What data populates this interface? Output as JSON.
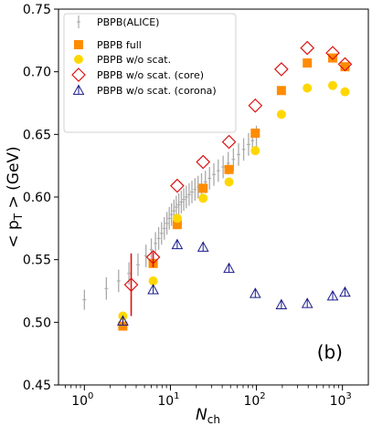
{
  "chart_data": {
    "type": "scatter",
    "xscale": "log",
    "xlim": [
      0.5,
      2000
    ],
    "ylim": [
      0.45,
      0.75
    ],
    "x_ticks": [
      {
        "value": 1,
        "base": "10",
        "exp": "0"
      },
      {
        "value": 10,
        "base": "10",
        "exp": "1"
      },
      {
        "value": 100,
        "base": "10",
        "exp": "2"
      },
      {
        "value": 1000,
        "base": "10",
        "exp": "3"
      }
    ],
    "y_ticks": [
      "0.45",
      "0.50",
      "0.55",
      "0.60",
      "0.65",
      "0.70",
      "0.75"
    ],
    "xlabel": {
      "main": "N",
      "sub": "ch"
    },
    "ylabel": {
      "pre": "< p",
      "sub": "T",
      "post": " > (GeV)"
    },
    "panel_label": "(b)",
    "grid": false,
    "legend_position": "top-left",
    "series": [
      {
        "name": "PBPB(ALICE)",
        "marker": "errorbar",
        "color": "#a9a9a9",
        "points": [
          {
            "x": 1.0,
            "y": 0.518,
            "err": 0.008
          },
          {
            "x": 1.8,
            "y": 0.527,
            "err": 0.009
          },
          {
            "x": 2.5,
            "y": 0.533,
            "err": 0.009
          },
          {
            "x": 3.3,
            "y": 0.539,
            "err": 0.009
          },
          {
            "x": 4.2,
            "y": 0.546,
            "err": 0.009
          },
          {
            "x": 5.2,
            "y": 0.553,
            "err": 0.009
          },
          {
            "x": 6.0,
            "y": 0.558,
            "err": 0.009
          },
          {
            "x": 6.7,
            "y": 0.563,
            "err": 0.009
          },
          {
            "x": 7.3,
            "y": 0.567,
            "err": 0.009
          },
          {
            "x": 7.9,
            "y": 0.571,
            "err": 0.009
          },
          {
            "x": 8.5,
            "y": 0.575,
            "err": 0.009
          },
          {
            "x": 9.1,
            "y": 0.579,
            "err": 0.009
          },
          {
            "x": 9.7,
            "y": 0.583,
            "err": 0.009
          },
          {
            "x": 10.3,
            "y": 0.586,
            "err": 0.009
          },
          {
            "x": 11.0,
            "y": 0.589,
            "err": 0.009
          },
          {
            "x": 11.7,
            "y": 0.592,
            "err": 0.009
          },
          {
            "x": 12.5,
            "y": 0.594,
            "err": 0.009
          },
          {
            "x": 13.4,
            "y": 0.596,
            "err": 0.009
          },
          {
            "x": 14.3,
            "y": 0.598,
            "err": 0.009
          },
          {
            "x": 15.3,
            "y": 0.6,
            "err": 0.009
          },
          {
            "x": 16.5,
            "y": 0.602,
            "err": 0.009
          },
          {
            "x": 17.8,
            "y": 0.604,
            "err": 0.009
          },
          {
            "x": 19.3,
            "y": 0.606,
            "err": 0.009
          },
          {
            "x": 21.0,
            "y": 0.608,
            "err": 0.009
          },
          {
            "x": 23.0,
            "y": 0.61,
            "err": 0.009
          },
          {
            "x": 25.5,
            "y": 0.612,
            "err": 0.009
          },
          {
            "x": 28.5,
            "y": 0.615,
            "err": 0.009
          },
          {
            "x": 32.0,
            "y": 0.618,
            "err": 0.009
          },
          {
            "x": 36.0,
            "y": 0.621,
            "err": 0.009
          },
          {
            "x": 41.0,
            "y": 0.624,
            "err": 0.009
          },
          {
            "x": 47.0,
            "y": 0.627,
            "err": 0.009
          },
          {
            "x": 54.0,
            "y": 0.63,
            "err": 0.009
          },
          {
            "x": 62.0,
            "y": 0.634,
            "err": 0.009
          },
          {
            "x": 71.0,
            "y": 0.638,
            "err": 0.009
          },
          {
            "x": 81.0,
            "y": 0.642,
            "err": 0.009
          },
          {
            "x": 90.0,
            "y": 0.645,
            "err": 0.009
          },
          {
            "x": 100.0,
            "y": 0.648,
            "err": 0.009
          }
        ]
      },
      {
        "name": "PBPB full",
        "marker": "square",
        "color": "#ff8c00",
        "points": [
          {
            "x": 2.8,
            "y": 0.497
          },
          {
            "x": 6.3,
            "y": 0.547
          },
          {
            "x": 12.0,
            "y": 0.578
          },
          {
            "x": 24.0,
            "y": 0.607
          },
          {
            "x": 48.0,
            "y": 0.622
          },
          {
            "x": 97.0,
            "y": 0.651
          },
          {
            "x": 195.0,
            "y": 0.685
          },
          {
            "x": 390.0,
            "y": 0.707
          },
          {
            "x": 770.0,
            "y": 0.711
          },
          {
            "x": 1070.0,
            "y": 0.704
          }
        ]
      },
      {
        "name": "PBPB w/o scat.",
        "marker": "circle",
        "color": "#ffd700",
        "points": [
          {
            "x": 2.8,
            "y": 0.505
          },
          {
            "x": 6.3,
            "y": 0.533
          },
          {
            "x": 12.0,
            "y": 0.583
          },
          {
            "x": 24.0,
            "y": 0.599
          },
          {
            "x": 48.0,
            "y": 0.612
          },
          {
            "x": 97.0,
            "y": 0.637
          },
          {
            "x": 195.0,
            "y": 0.666
          },
          {
            "x": 390.0,
            "y": 0.687
          },
          {
            "x": 770.0,
            "y": 0.689
          },
          {
            "x": 1070.0,
            "y": 0.684
          }
        ]
      },
      {
        "name": "PBPB w/o scat. (core)",
        "marker": "diamond",
        "color": "#dd1111",
        "points": [
          {
            "x": 3.5,
            "y": 0.53,
            "err_lo": 0.025,
            "err_hi": 0.025
          },
          {
            "x": 6.3,
            "y": 0.552,
            "err_lo": 0.008,
            "err_hi": 0.004
          },
          {
            "x": 12.0,
            "y": 0.609
          },
          {
            "x": 24.0,
            "y": 0.628
          },
          {
            "x": 48.0,
            "y": 0.644
          },
          {
            "x": 97.0,
            "y": 0.673
          },
          {
            "x": 195.0,
            "y": 0.702
          },
          {
            "x": 390.0,
            "y": 0.719
          },
          {
            "x": 770.0,
            "y": 0.715
          },
          {
            "x": 1070.0,
            "y": 0.706
          }
        ]
      },
      {
        "name": "PBPB w/o scat. (corona)",
        "marker": "triangle",
        "color": "#1a1a8c",
        "points": [
          {
            "x": 2.8,
            "y": 0.501
          },
          {
            "x": 6.3,
            "y": 0.526
          },
          {
            "x": 12.0,
            "y": 0.562
          },
          {
            "x": 24.0,
            "y": 0.56
          },
          {
            "x": 48.0,
            "y": 0.543
          },
          {
            "x": 97.0,
            "y": 0.523
          },
          {
            "x": 195.0,
            "y": 0.514
          },
          {
            "x": 390.0,
            "y": 0.515
          },
          {
            "x": 770.0,
            "y": 0.521
          },
          {
            "x": 1070.0,
            "y": 0.524
          }
        ]
      }
    ]
  }
}
